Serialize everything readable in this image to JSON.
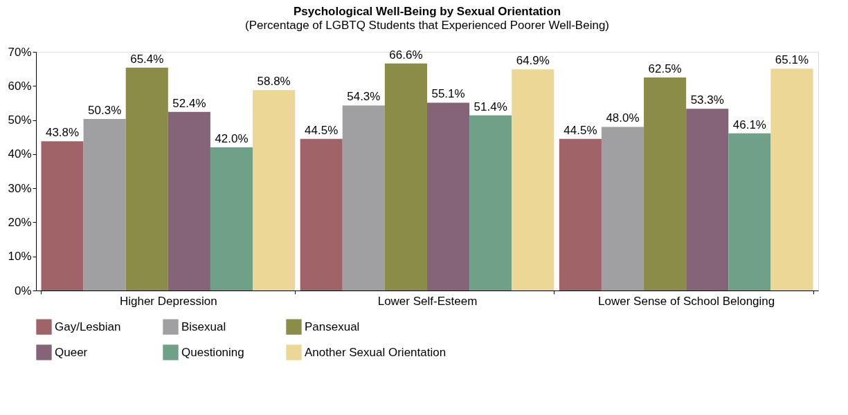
{
  "chart_data": {
    "type": "bar",
    "title": "Psychological Well-Being by Sexual Orientation",
    "subtitle": "(Percentage of LGBTQ Students that Experienced Poorer Well-Being)",
    "categories": [
      "Higher Depression",
      "Lower Self-Esteem",
      "Lower Sense of School Belonging"
    ],
    "series": [
      {
        "name": "Gay/Lesbian",
        "color": "#a06468",
        "values": [
          43.8,
          44.5,
          44.5
        ],
        "value_labels": [
          "43.8%",
          "44.5%",
          "44.5%"
        ]
      },
      {
        "name": "Bisexual",
        "color": "#a0a0a2",
        "values": [
          50.3,
          54.3,
          48.0
        ],
        "value_labels": [
          "50.3%",
          "54.3%",
          "48.0%"
        ]
      },
      {
        "name": "Pansexual",
        "color": "#8a8c48",
        "values": [
          65.4,
          66.6,
          62.5
        ],
        "value_labels": [
          "65.4%",
          "66.6%",
          "62.5%"
        ]
      },
      {
        "name": "Queer",
        "color": "#866478",
        "values": [
          52.4,
          55.1,
          53.3
        ],
        "value_labels": [
          "52.4%",
          "55.1%",
          "53.3%"
        ]
      },
      {
        "name": "Questioning",
        "color": "#6fa088",
        "values": [
          42.0,
          51.4,
          46.1
        ],
        "value_labels": [
          "42.0%",
          "51.4%",
          "46.1%"
        ]
      },
      {
        "name": "Another Sexual Orientation",
        "color": "#ecd796",
        "values": [
          58.8,
          64.9,
          65.1
        ],
        "value_labels": [
          "58.8%",
          "64.9%",
          "65.1%"
        ]
      }
    ],
    "ylim": [
      0,
      70
    ],
    "yticks": [
      {
        "value": 0,
        "label": "0%"
      },
      {
        "value": 10,
        "label": "10%"
      },
      {
        "value": 20,
        "label": "20%"
      },
      {
        "value": 30,
        "label": "30%"
      },
      {
        "value": 40,
        "label": "40%"
      },
      {
        "value": 50,
        "label": "50%"
      },
      {
        "value": 60,
        "label": "60%"
      },
      {
        "value": 70,
        "label": "70%"
      }
    ],
    "grid": false,
    "legend": "bottom"
  }
}
